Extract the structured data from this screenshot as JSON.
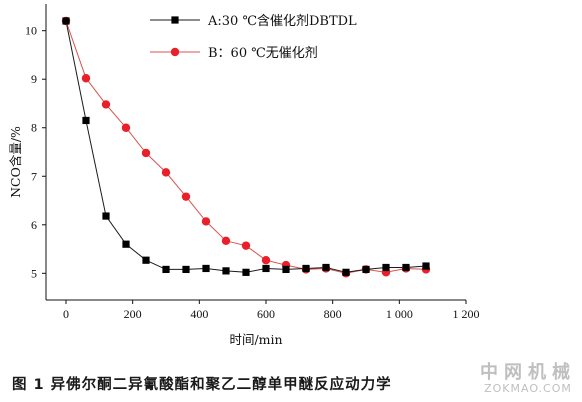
{
  "chart_data": {
    "type": "line",
    "xlabel": "时间/min",
    "ylabel": "NCO含量/%",
    "xlim": [
      -60,
      1200
    ],
    "ylim": [
      4.45,
      10.55
    ],
    "x_ticks": [
      0,
      200,
      400,
      600,
      800,
      1000,
      1200
    ],
    "x_tick_labels": [
      "0",
      "200",
      "400",
      "600",
      "800",
      "1 000",
      "1 200"
    ],
    "y_ticks": [
      5,
      6,
      7,
      8,
      9,
      10
    ],
    "y_tick_labels": [
      "5",
      "6",
      "7",
      "8",
      "9",
      "10"
    ],
    "legend_position": "top-right",
    "series": [
      {
        "name": "A:30 ℃含催化剂DBTDL",
        "marker": "square",
        "line_color": "#1a1a1a",
        "marker_color": "#000000",
        "x": [
          0,
          60,
          120,
          180,
          240,
          300,
          360,
          420,
          480,
          540,
          600,
          660,
          720,
          780,
          840,
          900,
          960,
          1020,
          1080
        ],
        "y": [
          10.2,
          8.15,
          6.18,
          5.6,
          5.27,
          5.08,
          5.08,
          5.1,
          5.05,
          5.02,
          5.1,
          5.08,
          5.1,
          5.12,
          5.02,
          5.08,
          5.12,
          5.12,
          5.15
        ]
      },
      {
        "name": "B：60 ℃无催化剂",
        "marker": "circle",
        "line_color": "#d9534f",
        "marker_color": "#e8202a",
        "x": [
          0,
          60,
          120,
          180,
          240,
          300,
          360,
          420,
          480,
          540,
          600,
          660,
          720,
          780,
          840,
          900,
          960,
          1020,
          1080
        ],
        "y": [
          10.2,
          9.02,
          8.48,
          8.0,
          7.48,
          7.08,
          6.58,
          6.07,
          5.67,
          5.57,
          5.27,
          5.17,
          5.08,
          5.1,
          5.0,
          5.08,
          5.02,
          5.1,
          5.08
        ]
      }
    ]
  },
  "caption": "图 1 异佛尔酮二异氰酸酯和聚乙二醇单甲醚反应动力学",
  "watermark": {
    "main": "中网机械",
    "sub": "ZOKMAO.COM"
  }
}
